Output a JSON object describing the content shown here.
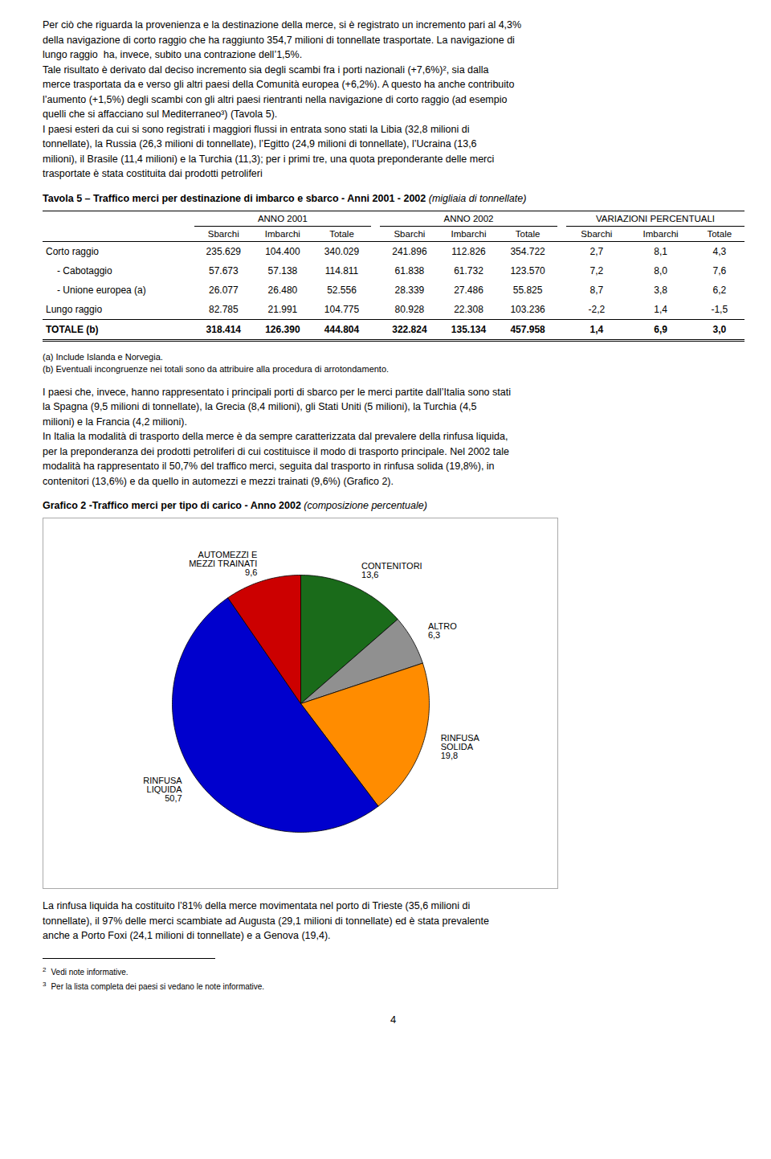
{
  "page_text": {
    "intro": [
      "Per ciò che riguarda la provenienza e la destinazione della merce, si è registrato un incremento pari al 4,3%",
      "della navigazione di corto raggio che ha raggiunto 354,7 milioni di tonnellate trasportate. La navigazione di",
      "lungo raggio  ha, invece, subito una contrazione dell’1,5%.",
      "Tale risultato è derivato dal deciso incremento sia degli scambi fra i porti nazionali (+7,6%)², sia dalla",
      "merce trasportata da e verso gli altri paesi della Comunità europea (+6,2%). A questo ha anche contribuito",
      "l’aumento (+1,5%) degli scambi con gli altri paesi rientranti nella navigazione di corto raggio (ad esempio",
      "quelli che si affacciano sul Mediterraneo³) (Tavola 5).",
      "I paesi esteri da cui si sono registrati i maggiori flussi in entrata sono stati la Libia (32,8 milioni di",
      "tonnellate), la Russia (26,3 milioni di tonnellate), l’Egitto (24,9 milioni di tonnellate), l’Ucraina (13,6",
      "milioni), il Brasile (11,4 milioni) e la Turchia (11,3); per i primi tre, una quota preponderante delle merci",
      "trasportate è stata costituita dai prodotti petroliferi"
    ],
    "middle": [
      "I paesi che, invece, hanno rappresentato i principali porti di sbarco per le merci partite dall’Italia sono stati",
      "la Spagna (9,5 milioni di tonnellate), la Grecia (8,4 milioni), gli Stati Uniti (5 milioni), la Turchia (4,5",
      "milioni) e la Francia (4,2 milioni).",
      "In Italia la modalità di trasporto della merce è da sempre caratterizzata dal prevalere della rinfusa liquida,",
      "per la preponderanza dei prodotti petroliferi di cui costituisce il modo di trasporto principale. Nel 2002 tale",
      "modalità ha rappresentato il 50,7% del traffico merci, seguita dal trasporto in rinfusa solida (19,8%), in",
      "contenitori (13,6%) e da quello in automezzi e mezzi trainati (9,6%) (Grafico 2)."
    ],
    "end": [
      "La rinfusa liquida ha costituito l’81% della merce movimentata nel porto di Trieste (35,6 milioni di",
      "tonnellate), il 97% delle merci scambiate ad Augusta (29,1 milioni di tonnellate) ed è stata prevalente",
      "anche a Porto Foxi (24,1 milioni di tonnellate) e a Genova (19,4)."
    ],
    "footnotes": [
      {
        "num": "2",
        "text": "Vedi note informative."
      },
      {
        "num": "3",
        "text": "Per la lista completa dei paesi si vedano le note informative."
      }
    ],
    "page_number": "4"
  },
  "chart_data": [
    {
      "type": "table",
      "title": "Tavola 5 – Traffico merci per destinazione di imbarco e sbarco - Anni 2001 - 2002",
      "subtitle": " (migliaia di tonnellate)",
      "column_groups": [
        {
          "label": "ANNO 2001",
          "columns": [
            "Sbarchi",
            "Imbarchi",
            "Totale"
          ]
        },
        {
          "label": "ANNO 2002",
          "columns": [
            "Sbarchi",
            "Imbarchi",
            "Totale"
          ]
        },
        {
          "label": "VARIAZIONI PERCENTUALI",
          "columns": [
            "Sbarchi",
            "Imbarchi",
            "Totale"
          ]
        }
      ],
      "row_labels": [
        "Corto raggio",
        "- Cabotaggio",
        "- Unione europea (a)",
        "Lungo raggio",
        "TOTALE (b)"
      ],
      "cells": [
        [
          "235.629",
          "104.400",
          "340.029",
          "241.896",
          "112.826",
          "354.722",
          "2,7",
          "8,1",
          "4,3"
        ],
        [
          "57.673",
          "57.138",
          "114.811",
          "61.838",
          "61.732",
          "123.570",
          "7,2",
          "8,0",
          "7,6"
        ],
        [
          "26.077",
          "26.480",
          "52.556",
          "28.339",
          "27.486",
          "55.825",
          "8,7",
          "3,8",
          "6,2"
        ],
        [
          "82.785",
          "21.991",
          "104.775",
          "80.928",
          "22.308",
          "103.236",
          "-2,2",
          "1,4",
          "-1,5"
        ],
        [
          "318.414",
          "126.390",
          "444.804",
          "322.824",
          "135.134",
          "457.958",
          "1,4",
          "6,9",
          "3,0"
        ]
      ],
      "notes": [
        "(a) Include Islanda e Norvegia.",
        "(b) Eventuali incongruenze nei totali sono da attribuire alla procedura di arrotondamento."
      ]
    },
    {
      "type": "pie",
      "title": "Grafico 2 -Traffico merci per tipo di carico - Anno 2002",
      "subtitle": " (composizione percentuale)",
      "categories": [
        "CONTENITORI",
        "ALTRO",
        "RINFUSA\nSOLIDA",
        "RINFUSA\nLIQUIDA",
        "AUTOMEZZI E\nMEZZI TRAINATI"
      ],
      "values": [
        13.6,
        6.3,
        19.8,
        50.7,
        9.6
      ],
      "value_labels": [
        "13,6",
        "6,3",
        "19,8",
        "50,7",
        "9,6"
      ],
      "colors": [
        "#1a6b1a",
        "#909090",
        "#ff8c00",
        "#0000cd",
        "#cc0000"
      ],
      "data_labels": true
    }
  ]
}
